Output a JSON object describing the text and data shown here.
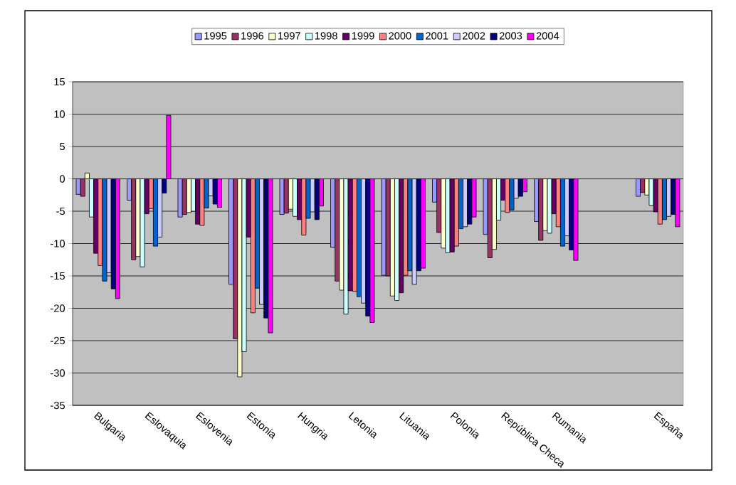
{
  "chart_data": {
    "type": "bar",
    "categories": [
      "Bulgaria",
      "Eslovaquia",
      "Eslovenia",
      "Estonia",
      "Hungria",
      "Letonia",
      "Lituania",
      "Polonia",
      "República Checa",
      "Rumania",
      null,
      "España"
    ],
    "series": [
      {
        "name": "1995",
        "color": "#9999ff",
        "values": [
          -2.4,
          -3.3,
          -5.9,
          -16.3,
          -5.5,
          -10.6,
          -14.9,
          -3.6,
          -8.6,
          -6.6,
          null,
          -2.7
        ]
      },
      {
        "name": "1996",
        "color": "#993366",
        "values": [
          -2.7,
          -12.5,
          -5.5,
          -24.7,
          -5.3,
          -15.8,
          -15.0,
          -8.3,
          -12.2,
          -9.5,
          null,
          -2.1
        ]
      },
      {
        "name": "1997",
        "color": "#ffffcc",
        "values": [
          0.9,
          -12.0,
          -5.2,
          -30.6,
          -4.7,
          -17.2,
          -18.1,
          -10.7,
          -10.9,
          -8.0,
          null,
          -2.5
        ]
      },
      {
        "name": "1998",
        "color": "#ccffff",
        "values": [
          -5.9,
          -13.6,
          -5.0,
          -26.7,
          -5.8,
          -20.9,
          -18.8,
          -11.4,
          -6.4,
          -8.4,
          null,
          -4.1
        ]
      },
      {
        "name": "1999",
        "color": "#660066",
        "values": [
          -11.5,
          -5.4,
          -7.0,
          -9.0,
          -6.3,
          -17.3,
          -17.6,
          -11.3,
          -3.3,
          -5.4,
          null,
          -5.1
        ]
      },
      {
        "name": "2000",
        "color": "#ff8080",
        "values": [
          -13.4,
          -4.6,
          -7.2,
          -20.7,
          -8.7,
          -17.4,
          -14.9,
          -10.4,
          -5.2,
          -7.4,
          null,
          -7.0
        ]
      },
      {
        "name": "2001",
        "color": "#0066cc",
        "values": [
          -15.8,
          -10.4,
          -4.5,
          -16.9,
          -6.1,
          -18.2,
          -14.2,
          -7.7,
          -4.8,
          -10.4,
          null,
          -6.3
        ]
      },
      {
        "name": "2002",
        "color": "#ccccff",
        "values": [
          -14.5,
          -9.0,
          -2.6,
          -19.4,
          -5.1,
          -19.2,
          -16.3,
          -7.4,
          -3.0,
          -8.8,
          null,
          -5.8
        ]
      },
      {
        "name": "2003",
        "color": "#000080",
        "values": [
          -17.0,
          -2.2,
          -3.9,
          -21.5,
          -6.3,
          -21.2,
          -14.2,
          -7.0,
          -2.7,
          -11.0,
          null,
          -5.5
        ]
      },
      {
        "name": "2004",
        "color": "#ff00ff",
        "values": [
          -18.5,
          9.8,
          -4.4,
          -23.8,
          -4.2,
          -22.2,
          -13.8,
          -5.9,
          -2.0,
          -12.6,
          null,
          -7.4
        ]
      }
    ],
    "ylim": [
      -35,
      15
    ],
    "yticks": [
      -35,
      -30,
      -25,
      -20,
      -15,
      -10,
      -5,
      0,
      5,
      10,
      15
    ],
    "grid": "y",
    "legend": "top"
  }
}
